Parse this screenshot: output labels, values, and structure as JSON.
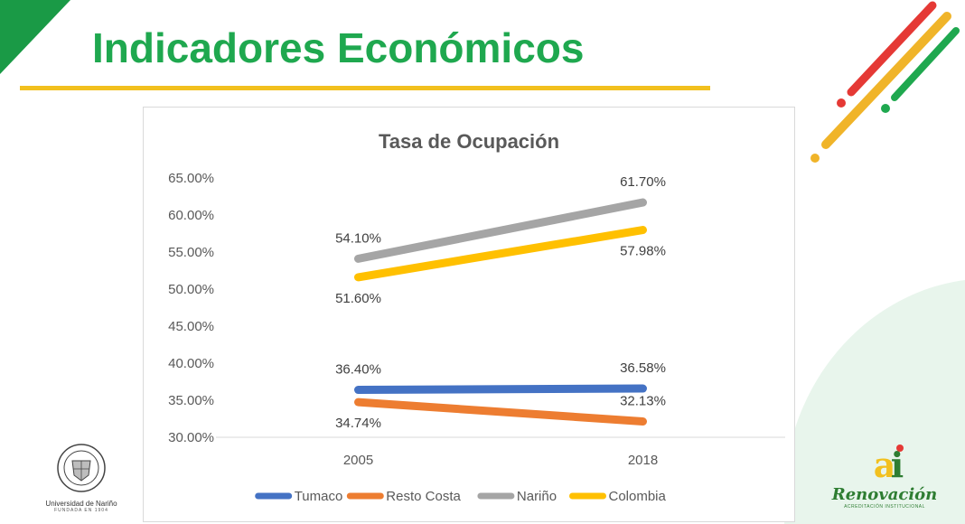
{
  "slide": {
    "title": "Indicadores Económicos",
    "colors": {
      "title": "#1fa84f",
      "rule": "#f2c01e",
      "corner": "#1a9a46"
    }
  },
  "logos": {
    "left": {
      "name": "Universidad de Nariño",
      "sub": "FUNDADA EN 1904"
    },
    "right": {
      "name": "Renovación",
      "sub": "ACREDITACIÓN INSTITUCIONAL",
      "mark": "ai"
    }
  },
  "chart_data": {
    "type": "line",
    "title": "Tasa de Ocupación",
    "x": [
      "2005",
      "2018"
    ],
    "yticks": [
      "30.00%",
      "35.00%",
      "40.00%",
      "45.00%",
      "50.00%",
      "55.00%",
      "60.00%",
      "65.00%"
    ],
    "ylim": [
      30,
      65
    ],
    "grid": false,
    "legend_position": "bottom",
    "series": [
      {
        "name": "Tumaco",
        "color": "#4472c4",
        "values": [
          36.4,
          36.58
        ],
        "labels": [
          "36.40%",
          "36.58%"
        ],
        "label_pos": [
          "above",
          "above"
        ]
      },
      {
        "name": "Resto Costa",
        "color": "#ed7d31",
        "values": [
          34.74,
          32.13
        ],
        "labels": [
          "34.74%",
          "32.13%"
        ],
        "label_pos": [
          "below",
          "above"
        ]
      },
      {
        "name": "Nariño",
        "color": "#a5a5a5",
        "values": [
          54.1,
          61.7
        ],
        "labels": [
          "54.10%",
          "61.70%"
        ],
        "label_pos": [
          "above",
          "above"
        ]
      },
      {
        "name": "Colombia",
        "color": "#ffc000",
        "values": [
          51.6,
          57.98
        ],
        "labels": [
          "51.60%",
          "57.98%"
        ],
        "label_pos": [
          "below",
          "below"
        ]
      }
    ]
  }
}
